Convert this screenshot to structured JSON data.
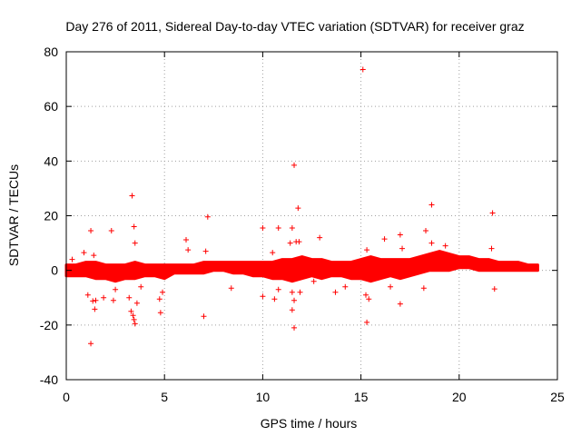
{
  "chart_data": {
    "type": "scatter",
    "title": "Day 276 of 2011, Sidereal Day-to-day VTEC variation (SDTVAR) for receiver graz",
    "xlabel": "GPS time / hours",
    "ylabel": "SDTVAR / TECUs",
    "xlim": [
      0,
      25
    ],
    "ylim": [
      -40,
      80
    ],
    "xticks": [
      0,
      5,
      10,
      15,
      20,
      25
    ],
    "yticks": [
      -40,
      -20,
      0,
      20,
      40,
      60,
      80
    ],
    "grid": true,
    "marker": "+",
    "color": "#ff0000",
    "band": {
      "x": [
        0,
        0.5,
        1.0,
        1.5,
        2.0,
        2.5,
        3.0,
        3.5,
        4.0,
        4.5,
        5.0,
        5.5,
        6.0,
        6.5,
        7.0,
        7.5,
        8.0,
        8.5,
        9.0,
        9.5,
        10.0,
        10.5,
        11.0,
        11.5,
        12.0,
        12.5,
        13.0,
        13.5,
        14.0,
        14.5,
        15.0,
        15.5,
        16.0,
        16.5,
        17.0,
        17.5,
        18.0,
        18.5,
        19.0,
        19.5,
        20.0,
        20.5,
        21.0,
        21.5,
        22.0,
        22.5,
        23.0,
        23.5,
        24.0
      ],
      "lower": [
        -2,
        -2,
        -2,
        -3,
        -3,
        -4,
        -3,
        -3,
        -2,
        -2,
        -3,
        -1,
        -1,
        -1,
        -1,
        0,
        0,
        -1,
        -1,
        -2,
        -2,
        -3,
        -3,
        -4,
        -3,
        -2,
        -3,
        -2,
        -2,
        -3,
        -3,
        -4,
        -3,
        -2,
        -3,
        -2,
        -1,
        0,
        0,
        0,
        1,
        1,
        0,
        0,
        0,
        0,
        0,
        0,
        0
      ],
      "upper": [
        2,
        2,
        3,
        3,
        2,
        2,
        2,
        3,
        2,
        2,
        2,
        2,
        2,
        2,
        3,
        3,
        3,
        3,
        3,
        3,
        3,
        3,
        4,
        4,
        5,
        4,
        4,
        3,
        3,
        3,
        4,
        5,
        4,
        4,
        4,
        4,
        5,
        6,
        7,
        6,
        5,
        5,
        4,
        4,
        3,
        3,
        3,
        2,
        2
      ]
    },
    "points": [
      [
        15.1,
        73.5
      ],
      [
        11.6,
        38.5
      ],
      [
        3.35,
        27.3
      ],
      [
        18.6,
        24
      ],
      [
        11.8,
        22.8
      ],
      [
        21.7,
        21
      ],
      [
        7.2,
        19.6
      ],
      [
        3.45,
        16
      ],
      [
        10.0,
        15.5
      ],
      [
        10.8,
        15.5
      ],
      [
        11.5,
        15.5
      ],
      [
        1.25,
        14.5
      ],
      [
        2.3,
        14.5
      ],
      [
        18.3,
        14.5
      ],
      [
        17.0,
        13
      ],
      [
        12.9,
        12
      ],
      [
        6.1,
        11.2
      ],
      [
        3.5,
        10
      ],
      [
        11.4,
        10
      ],
      [
        11.7,
        10.5
      ],
      [
        16.2,
        11.5
      ],
      [
        11.85,
        10.5
      ],
      [
        17.1,
        8
      ],
      [
        18.6,
        10
      ],
      [
        19.3,
        9
      ],
      [
        21.65,
        8
      ],
      [
        15.3,
        7.5
      ],
      [
        7.1,
        7
      ],
      [
        6.2,
        7.5
      ],
      [
        10.5,
        6.5
      ],
      [
        0.9,
        6.5
      ],
      [
        1.4,
        5.5
      ],
      [
        0.3,
        4
      ],
      [
        1.1,
        -9
      ],
      [
        1.35,
        -11.2
      ],
      [
        1.5,
        -11
      ],
      [
        1.9,
        -10
      ],
      [
        1.45,
        -14.2
      ],
      [
        1.25,
        -26.8
      ],
      [
        2.4,
        -11
      ],
      [
        3.3,
        -15
      ],
      [
        3.4,
        -16.5
      ],
      [
        3.5,
        -19.5
      ],
      [
        3.45,
        -18
      ],
      [
        3.2,
        -10
      ],
      [
        3.6,
        -12
      ],
      [
        4.8,
        -15.5
      ],
      [
        4.75,
        -10.5
      ],
      [
        7.0,
        -16.8
      ],
      [
        8.4,
        -6.5
      ],
      [
        10.0,
        -9.5
      ],
      [
        10.6,
        -10.5
      ],
      [
        10.8,
        -7
      ],
      [
        11.5,
        -8
      ],
      [
        11.6,
        -11
      ],
      [
        11.5,
        -14.5
      ],
      [
        11.6,
        -21
      ],
      [
        11.9,
        -8
      ],
      [
        13.7,
        -8
      ],
      [
        15.25,
        -9
      ],
      [
        15.3,
        -19
      ],
      [
        15.4,
        -10.5
      ],
      [
        16.5,
        -6
      ],
      [
        17.0,
        -12.3
      ],
      [
        18.2,
        -6.5
      ],
      [
        21.8,
        -6.8
      ],
      [
        3.8,
        -6
      ],
      [
        2.5,
        -7
      ],
      [
        4.9,
        -8
      ],
      [
        12.6,
        -4
      ],
      [
        14.2,
        -6
      ]
    ]
  }
}
